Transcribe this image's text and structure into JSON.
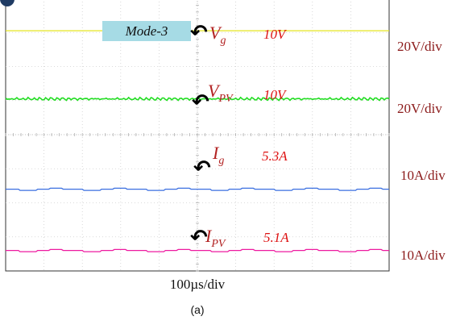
{
  "chart_data": {
    "type": "line",
    "mode_label": "Mode-3",
    "time_scale": "100µs/div",
    "caption": "(a)",
    "grid": true,
    "divisions": {
      "x": 10,
      "y": 8
    },
    "series": [
      {
        "name": "V",
        "sub": "g",
        "value": "10V",
        "scale": "20V/div",
        "color": "#e6e61e",
        "level_div": 7.05,
        "ripple": "flat"
      },
      {
        "name": "V",
        "sub": "PV",
        "value": "10V",
        "scale": "20V/div",
        "color": "#22dd22",
        "level_div": 5.05,
        "ripple": "noisy"
      },
      {
        "name": "I",
        "sub": "g",
        "value": "5.3A",
        "scale": "10A/div",
        "color": "#3a6fe0",
        "level_div": 2.4,
        "ripple": "step"
      },
      {
        "name": "I",
        "sub": "PV",
        "value": "5.1A",
        "scale": "10A/div",
        "color": "#ee1aa0",
        "level_div": 0.6,
        "ripple": "step"
      }
    ]
  }
}
